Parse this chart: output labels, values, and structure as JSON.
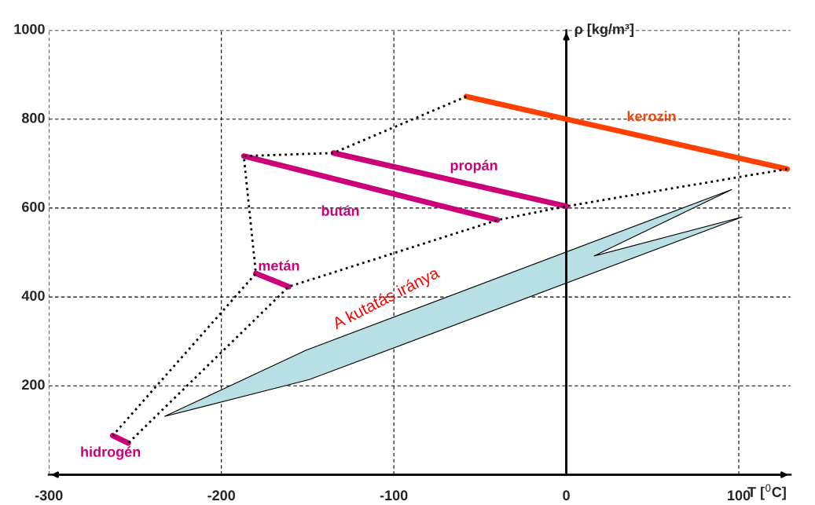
{
  "chart_data": {
    "type": "line",
    "xlabel": "T [$^{0}$C]",
    "ylabel": "ρ [kg/m³]",
    "xlim": [
      -300,
      130
    ],
    "ylim": [
      0,
      1000
    ],
    "xticks": [
      -300,
      -200,
      -100,
      0,
      100
    ],
    "yticks": [
      200,
      400,
      600,
      800,
      1000
    ],
    "grid": true,
    "marker": "none",
    "series": [
      {
        "name": "kerozin",
        "color": "#ff4000",
        "line_style": "solid",
        "x": [
          -58,
          128
        ],
        "values": [
          851,
          688
        ]
      },
      {
        "name": "propán",
        "color": "#cc0077",
        "line_style": "solid",
        "x": [
          -135,
          0
        ],
        "values": [
          724,
          604
        ]
      },
      {
        "name": "bután",
        "color": "#cc0077",
        "line_style": "solid",
        "x": [
          -187,
          -40
        ],
        "values": [
          717,
          573
        ]
      },
      {
        "name": "metán",
        "color": "#cc0077",
        "line_style": "solid",
        "x": [
          -180,
          -161
        ],
        "values": [
          453,
          423
        ]
      },
      {
        "name": "hidrogén",
        "color": "#cc0077",
        "line_style": "solid",
        "x": [
          -263,
          -254
        ],
        "values": [
          88,
          71
        ]
      },
      {
        "color": "#000000",
        "line_style": "dotted",
        "x": [
          -58,
          -135,
          -187,
          -180,
          -263
        ],
        "values": [
          851,
          724,
          717,
          453,
          88
        ]
      },
      {
        "color": "#000000",
        "line_style": "dotted",
        "x": [
          128,
          0,
          -40,
          -161,
          -254
        ],
        "values": [
          688,
          604,
          573,
          423,
          71
        ]
      }
    ],
    "annotations": [
      "A kutatás iránya"
    ]
  }
}
